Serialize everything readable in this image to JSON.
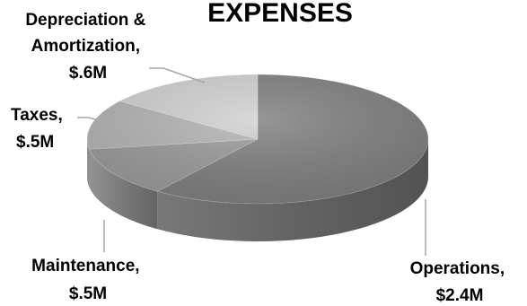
{
  "chart_data": {
    "type": "pie",
    "style": "3d",
    "title": "EXPENSES",
    "slices": [
      {
        "name": "Operations",
        "value_label": "$2.4M",
        "value": 2.4,
        "color": "#7f7f7f"
      },
      {
        "name": "Maintenance",
        "value_label": "$.5M",
        "value": 0.5,
        "color": "#9a9a9a"
      },
      {
        "name": "Taxes",
        "value_label": "$.5M",
        "value": 0.5,
        "color": "#b3b3b3"
      },
      {
        "name": "Depreciation & Amortization",
        "value_label": "$.6M",
        "value": 0.6,
        "color": "#d0d0d0"
      }
    ],
    "units": "$M",
    "legend": "none"
  }
}
